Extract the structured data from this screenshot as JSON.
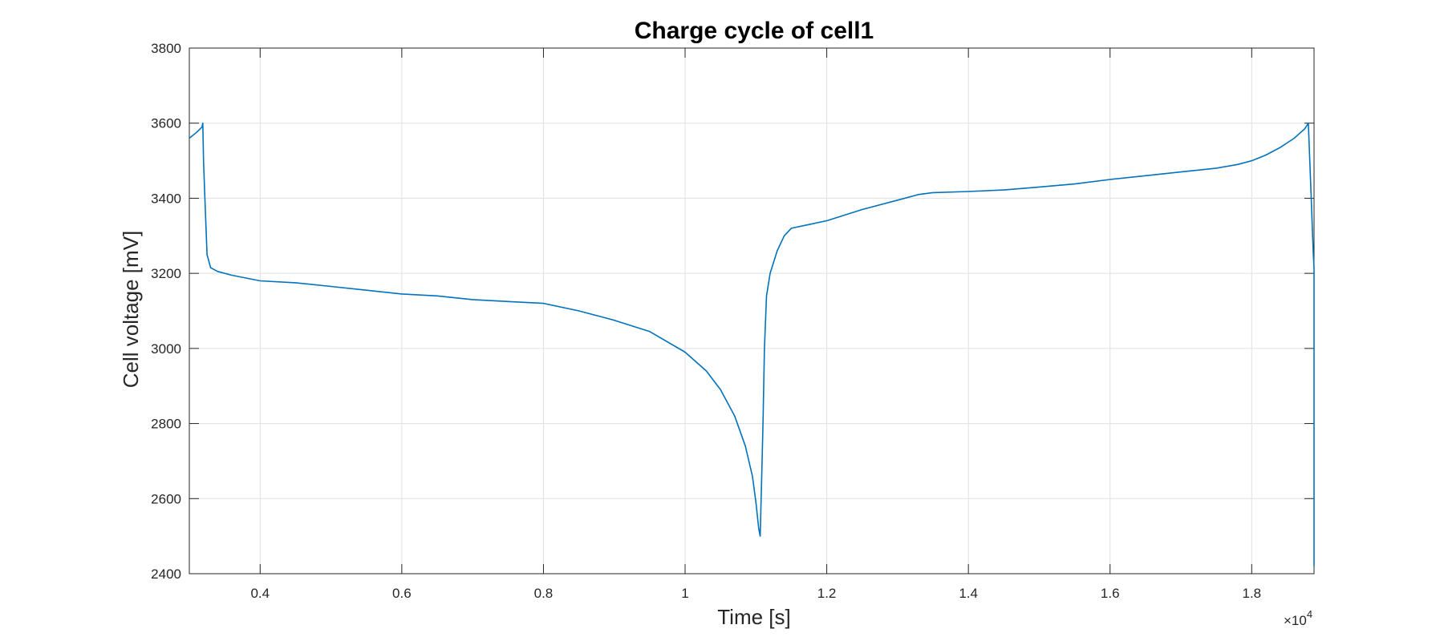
{
  "chart_data": {
    "type": "line",
    "title": "Charge cycle of cell1",
    "xlabel": "Time [s]",
    "ylabel": "Cell voltage [mV]",
    "x_scale_label": "×10",
    "x_scale_exponent": "4",
    "xlim": [
      0.3,
      1.888
    ],
    "ylim": [
      2400,
      3800
    ],
    "xticks": [
      0.4,
      0.6,
      0.8,
      1,
      1.2,
      1.4,
      1.6,
      1.8
    ],
    "xtick_labels": [
      "0.4",
      "0.6",
      "0.8",
      "1",
      "1.2",
      "1.4",
      "1.6",
      "1.8"
    ],
    "yticks": [
      2400,
      2600,
      2800,
      3000,
      3200,
      3400,
      3600,
      3800
    ],
    "ytick_labels": [
      "2400",
      "2600",
      "2800",
      "3000",
      "3200",
      "3400",
      "3600",
      "3800"
    ],
    "grid": true,
    "line_color": "#0072BD",
    "grid_color": "#e0e0e0",
    "axis_color": "#262626",
    "series": [
      {
        "x": [
          0.3,
          0.31,
          0.318,
          0.319,
          0.32,
          0.322,
          0.325,
          0.33,
          0.34,
          0.36,
          0.4,
          0.45,
          0.5,
          0.55,
          0.6,
          0.65,
          0.7,
          0.75,
          0.8,
          0.85,
          0.9,
          0.95,
          1.0,
          1.03,
          1.05,
          1.07,
          1.085,
          1.095,
          1.1,
          1.104,
          1.106,
          1.108,
          1.11,
          1.112,
          1.115,
          1.12,
          1.13,
          1.14,
          1.15,
          1.175,
          1.2,
          1.25,
          1.3,
          1.33,
          1.35,
          1.4,
          1.45,
          1.5,
          1.55,
          1.6,
          1.65,
          1.7,
          1.75,
          1.78,
          1.8,
          1.82,
          1.84,
          1.86,
          1.875,
          1.88,
          1.882,
          1.884,
          1.886,
          1.887,
          1.888,
          1.888
        ],
        "y": [
          3560,
          3575,
          3590,
          3600,
          3500,
          3400,
          3250,
          3215,
          3205,
          3195,
          3180,
          3175,
          3165,
          3155,
          3145,
          3140,
          3130,
          3125,
          3120,
          3100,
          3075,
          3045,
          2990,
          2940,
          2890,
          2820,
          2740,
          2660,
          2590,
          2520,
          2500,
          2650,
          2800,
          3000,
          3140,
          3200,
          3260,
          3300,
          3320,
          3330,
          3340,
          3370,
          3395,
          3410,
          3415,
          3418,
          3422,
          3430,
          3438,
          3450,
          3460,
          3470,
          3480,
          3490,
          3500,
          3515,
          3535,
          3560,
          3585,
          3600,
          3500,
          3400,
          3300,
          3250,
          3215,
          2420
        ]
      }
    ]
  }
}
